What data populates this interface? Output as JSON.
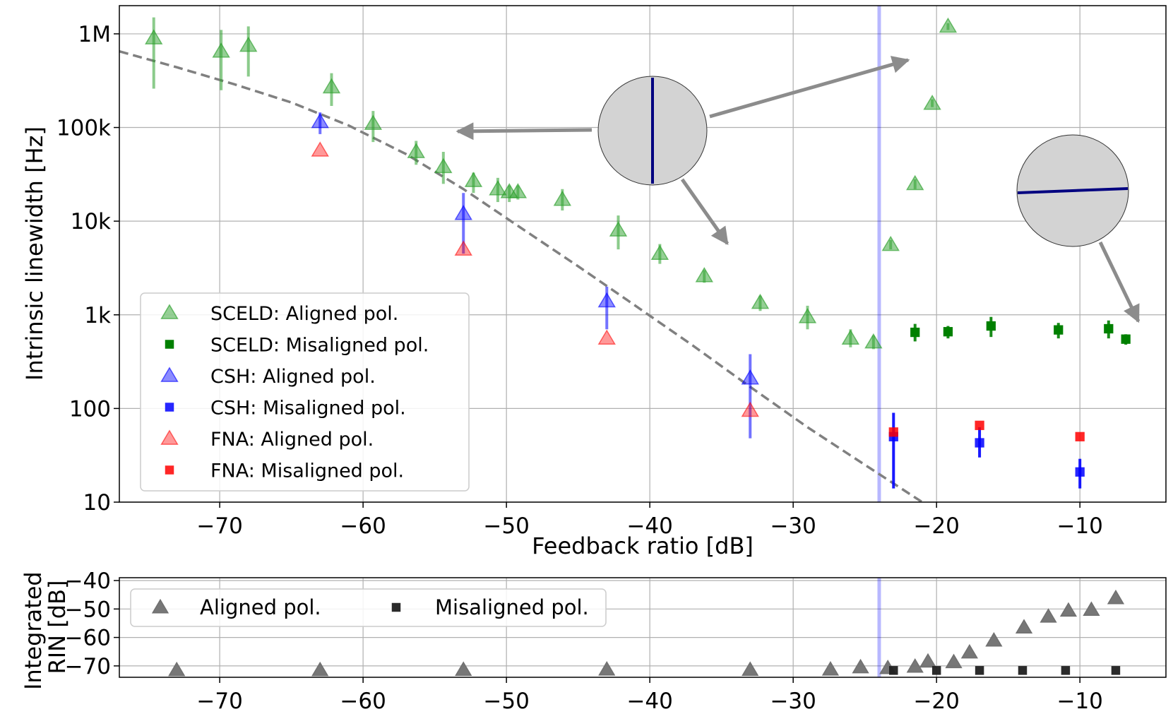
{
  "chart_data": [
    {
      "type": "scatter",
      "title": "",
      "xlabel": "Feedback ratio [dB]",
      "ylabel": "Intrinsic linewidth [Hz]",
      "yscale": "log",
      "xlim": [
        -77,
        -4
      ],
      "ylim": [
        10,
        2000000
      ],
      "grid": true,
      "legend_position": "lower-left",
      "x_ticks": [
        -70,
        -60,
        -50,
        -40,
        -30,
        -20,
        -10
      ],
      "x_tick_labels": [
        "−70",
        "−60",
        "−50",
        "−40",
        "−30",
        "−20",
        "−10"
      ],
      "y_ticks": [
        10,
        100,
        1000,
        10000,
        100000,
        1000000
      ],
      "y_tick_labels": [
        "10",
        "100",
        "1k",
        "10k",
        "100k",
        "1M"
      ],
      "vertical_marker_x": -24,
      "reference_curve": {
        "style": "dashed",
        "color": "#808080",
        "x": [
          -77,
          -73,
          -69,
          -65,
          -61,
          -57,
          -53,
          -49,
          -45,
          -41,
          -37,
          -33,
          -29,
          -25,
          -21
        ],
        "y": [
          650000,
          440000,
          290000,
          185000,
          105000,
          52000,
          22000,
          8500,
          3300,
          1250,
          470,
          170,
          63,
          25,
          10
        ]
      },
      "series": [
        {
          "name": "SCELD: Aligned pol.",
          "marker": "triangle",
          "color": "#2ca02c",
          "alpha": 0.5,
          "x": [
            -74.6,
            -69.9,
            -68.0,
            -62.2,
            -59.3,
            -56.3,
            -54.4,
            -52.3,
            -50.6,
            -49.8,
            -49.2,
            -46.1,
            -42.2,
            -39.3,
            -36.2,
            -32.3,
            -29.0,
            -26.0,
            -24.4,
            -23.2,
            -21.5,
            -20.3,
            -19.2
          ],
          "y": [
            900000,
            650000,
            750000,
            270000,
            110000,
            55000,
            38000,
            27000,
            22000,
            20500,
            20500,
            17000,
            8000,
            4500,
            2600,
            1350,
            950,
            560,
            510,
            5600,
            25000,
            180000,
            1200000
          ],
          "err_low": [
            260000,
            250000,
            350000,
            170000,
            70000,
            40000,
            25000,
            20000,
            16000,
            16000,
            17000,
            13000,
            5000,
            3500,
            2200,
            1100,
            700,
            450,
            430,
            5000,
            22000,
            165000,
            1100000
          ],
          "err_high": [
            1500000,
            1100000,
            1200000,
            380000,
            150000,
            72000,
            55000,
            33000,
            29000,
            24000,
            24000,
            22000,
            11500,
            5700,
            3000,
            1600,
            1250,
            700,
            600,
            6300,
            28000,
            200000,
            1300000
          ]
        },
        {
          "name": "SCELD: Misaligned pol.",
          "marker": "square",
          "color": "#008000",
          "alpha": 1.0,
          "x": [
            -21.5,
            -19.2,
            -16.2,
            -11.5,
            -8.0,
            -6.8
          ],
          "y": [
            650,
            660,
            760,
            690,
            710,
            550
          ],
          "err_low": [
            520,
            560,
            580,
            560,
            560,
            480
          ],
          "err_high": [
            800,
            760,
            950,
            820,
            870,
            620
          ]
        },
        {
          "name": "CSH: Aligned pol.",
          "marker": "triangle",
          "color": "#0000ff",
          "alpha": 0.45,
          "x": [
            -63.0,
            -53.0,
            -43.0,
            -33.0
          ],
          "y": [
            115000,
            12000,
            1400,
            210
          ],
          "err_low": [
            85000,
            4500,
            700,
            48
          ],
          "err_high": [
            145000,
            20000,
            2000,
            380
          ]
        },
        {
          "name": "CSH: Misaligned pol.",
          "marker": "square",
          "color": "#0000ff",
          "alpha": 0.85,
          "x": [
            -23.0,
            -17.0,
            -10.0
          ],
          "y": [
            50,
            43,
            21
          ],
          "err_low": [
            14,
            30,
            14
          ],
          "err_high": [
            90,
            63,
            29
          ]
        },
        {
          "name": "FNA: Aligned pol.",
          "marker": "triangle",
          "color": "#ff0000",
          "alpha": 0.4,
          "x": [
            -63.0,
            -53.0,
            -43.0,
            -33.0
          ],
          "y": [
            57000,
            5000,
            560,
            95
          ]
        },
        {
          "name": "FNA: Misaligned pol.",
          "marker": "square",
          "color": "#ff0000",
          "alpha": 0.85,
          "x": [
            -23.0,
            -17.0,
            -10.0
          ],
          "y": [
            56,
            66,
            50
          ]
        }
      ],
      "annotations": [
        {
          "type": "polarization-inset",
          "orientation": "vertical",
          "arrows": "three"
        },
        {
          "type": "polarization-inset",
          "orientation": "horizontal",
          "arrows": "one"
        }
      ]
    },
    {
      "type": "scatter",
      "title": "",
      "xlabel": "",
      "ylabel": "Integrated RIN [dB]",
      "ylabel_lines": [
        "Integrated",
        "RIN [dB]"
      ],
      "xlim": [
        -77,
        -4
      ],
      "ylim": [
        -74,
        -39
      ],
      "grid": true,
      "legend_position": "top-left",
      "x_ticks": [
        -70,
        -60,
        -50,
        -40,
        -30,
        -20,
        -10
      ],
      "x_tick_labels": [
        "−70",
        "−60",
        "−50",
        "−40",
        "−30",
        "−20",
        "−10"
      ],
      "y_ticks": [
        -70,
        -60,
        -50,
        -40
      ],
      "y_tick_labels": [
        "−70",
        "−60",
        "−50",
        "−40"
      ],
      "vertical_marker_x": -24,
      "series": [
        {
          "name": "Aligned pol.",
          "marker": "triangle",
          "color": "#707070",
          "x": [
            -73.0,
            -63.0,
            -53.0,
            -43.0,
            -33.0,
            -27.4,
            -25.3,
            -23.4,
            -21.5,
            -20.6,
            -18.8,
            -17.7,
            -16.0,
            -13.9,
            -12.2,
            -10.8,
            -9.2,
            -7.5
          ],
          "y": [
            -71.5,
            -71.5,
            -71.4,
            -71.3,
            -71.4,
            -71.3,
            -70.5,
            -70.8,
            -70.3,
            -68.5,
            -68.7,
            -65.3,
            -61.1,
            -56.5,
            -52.7,
            -50.6,
            -50.3,
            -46.2
          ]
        },
        {
          "name": "Misaligned pol.",
          "marker": "square",
          "color": "#202020",
          "x": [
            -23.0,
            -20.0,
            -17.0,
            -14.0,
            -11.0,
            -7.5
          ],
          "y": [
            -71.6,
            -71.6,
            -71.6,
            -71.6,
            -71.6,
            -71.6
          ]
        }
      ]
    }
  ]
}
